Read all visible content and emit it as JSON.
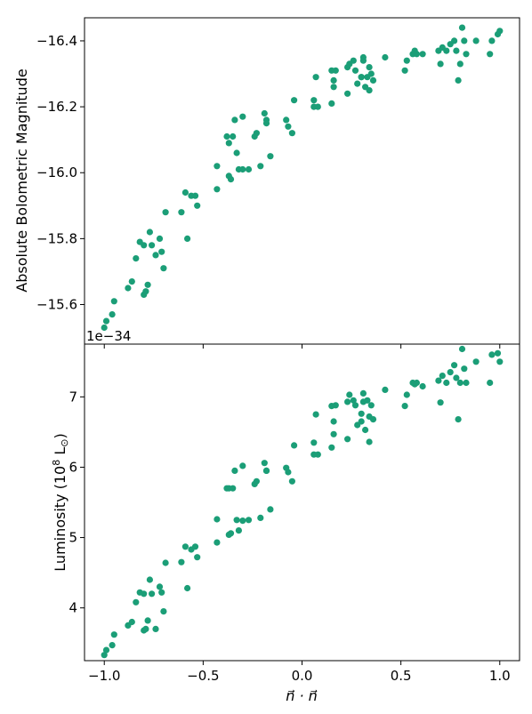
{
  "chart_data": [
    {
      "type": "scatter",
      "panel": "top",
      "ylabel": "Absolute Bolometric Magnitude",
      "y_inverted": true,
      "xlim": [
        -1.1,
        1.1
      ],
      "ylim": [
        -15.48,
        -16.47
      ],
      "yticks": [
        -15.6,
        -15.8,
        -16.0,
        -16.2,
        -16.4
      ],
      "ytick_labels": [
        "−15.6",
        "−15.8",
        "−16.0",
        "−16.2",
        "−16.4"
      ],
      "color": "#1b9e77",
      "x": [
        -1.0,
        -0.99,
        -0.96,
        -0.95,
        -0.88,
        -0.86,
        -0.84,
        -0.82,
        -0.8,
        -0.8,
        -0.79,
        -0.78,
        -0.77,
        -0.76,
        -0.74,
        -0.72,
        -0.71,
        -0.7,
        -0.69,
        -0.61,
        -0.59,
        -0.58,
        -0.56,
        -0.54,
        -0.53,
        -0.43,
        -0.43,
        -0.38,
        -0.37,
        -0.37,
        -0.36,
        -0.35,
        -0.34,
        -0.33,
        -0.32,
        -0.3,
        -0.3,
        -0.27,
        -0.24,
        -0.23,
        -0.21,
        -0.19,
        -0.18,
        -0.18,
        -0.16,
        -0.08,
        -0.07,
        -0.05,
        -0.04,
        0.06,
        0.06,
        0.07,
        0.08,
        0.15,
        0.15,
        0.16,
        0.16,
        0.17,
        0.23,
        0.23,
        0.24,
        0.26,
        0.27,
        0.28,
        0.3,
        0.3,
        0.31,
        0.31,
        0.32,
        0.33,
        0.34,
        0.34,
        0.35,
        0.36,
        0.42,
        0.52,
        0.53,
        0.56,
        0.57,
        0.58,
        0.61,
        0.69,
        0.7,
        0.71,
        0.73,
        0.75,
        0.77,
        0.78,
        0.79,
        0.8,
        0.81,
        0.82,
        0.83,
        0.88,
        0.95,
        0.96,
        0.99,
        1.0
      ],
      "y": [
        -15.53,
        -15.55,
        -15.57,
        -15.61,
        -15.65,
        -15.67,
        -15.74,
        -15.79,
        -15.63,
        -15.78,
        -15.64,
        -15.66,
        -15.82,
        -15.78,
        -15.75,
        -15.8,
        -15.76,
        -15.71,
        -15.88,
        -15.88,
        -15.94,
        -15.8,
        -15.93,
        -15.93,
        -15.9,
        -15.95,
        -16.02,
        -16.11,
        -16.09,
        -15.99,
        -15.98,
        -16.11,
        -16.16,
        -16.06,
        -16.01,
        -16.17,
        -16.01,
        -16.01,
        -16.11,
        -16.12,
        -16.02,
        -16.18,
        -16.16,
        -16.15,
        -16.05,
        -16.16,
        -16.14,
        -16.12,
        -16.22,
        -16.22,
        -16.2,
        -16.29,
        -16.2,
        -16.31,
        -16.21,
        -16.28,
        -16.26,
        -16.31,
        -16.32,
        -16.24,
        -16.33,
        -16.34,
        -16.31,
        -16.27,
        -16.29,
        -16.29,
        -16.35,
        -16.34,
        -16.26,
        -16.29,
        -16.25,
        -16.32,
        -16.3,
        -16.28,
        -16.35,
        -16.31,
        -16.34,
        -16.36,
        -16.37,
        -16.36,
        -16.36,
        -16.37,
        -16.33,
        -16.38,
        -16.37,
        -16.39,
        -16.4,
        -16.37,
        -16.28,
        -16.33,
        -16.44,
        -16.4,
        -16.36,
        -16.4,
        -16.36,
        -16.4,
        -16.42,
        -16.43
      ]
    },
    {
      "type": "scatter",
      "panel": "bottom",
      "offset_text": "1e−34",
      "ylabel": "Luminosity (10",
      "ylabel_sup": "8",
      "ylabel_unit": " L",
      "ylabel_sub": "⊙",
      "ylabel_close": ")",
      "xlabel": "n⃗ · n⃗",
      "xlim": [
        -1.1,
        1.1
      ],
      "ylim": [
        3.25,
        7.75
      ],
      "xticks": [
        -1.0,
        -0.5,
        0.0,
        0.5,
        1.0
      ],
      "xtick_labels": [
        "−1.0",
        "−0.5",
        "0.0",
        "0.5",
        "1.0"
      ],
      "yticks": [
        4,
        5,
        6,
        7
      ],
      "ytick_labels": [
        "4",
        "5",
        "6",
        "7"
      ],
      "color": "#1b9e77",
      "x": [
        -1.0,
        -0.99,
        -0.96,
        -0.95,
        -0.88,
        -0.86,
        -0.84,
        -0.82,
        -0.8,
        -0.8,
        -0.79,
        -0.78,
        -0.77,
        -0.76,
        -0.74,
        -0.72,
        -0.71,
        -0.7,
        -0.69,
        -0.61,
        -0.59,
        -0.58,
        -0.56,
        -0.54,
        -0.53,
        -0.43,
        -0.43,
        -0.38,
        -0.37,
        -0.37,
        -0.36,
        -0.35,
        -0.34,
        -0.33,
        -0.32,
        -0.3,
        -0.3,
        -0.27,
        -0.24,
        -0.23,
        -0.21,
        -0.19,
        -0.18,
        -0.18,
        -0.16,
        -0.08,
        -0.07,
        -0.05,
        -0.04,
        0.06,
        0.06,
        0.07,
        0.08,
        0.15,
        0.15,
        0.16,
        0.16,
        0.17,
        0.23,
        0.23,
        0.24,
        0.26,
        0.27,
        0.28,
        0.3,
        0.3,
        0.31,
        0.31,
        0.32,
        0.33,
        0.34,
        0.34,
        0.35,
        0.36,
        0.42,
        0.52,
        0.53,
        0.56,
        0.57,
        0.58,
        0.61,
        0.69,
        0.7,
        0.71,
        0.73,
        0.75,
        0.77,
        0.78,
        0.79,
        0.8,
        0.81,
        0.82,
        0.83,
        0.88,
        0.95,
        0.96,
        0.99,
        1.0
      ],
      "y": [
        3.33,
        3.4,
        3.47,
        3.62,
        3.75,
        3.8,
        4.08,
        4.22,
        3.68,
        4.2,
        3.7,
        3.82,
        4.4,
        4.2,
        3.7,
        4.3,
        4.22,
        3.95,
        4.64,
        4.65,
        4.87,
        4.28,
        4.83,
        4.87,
        4.72,
        4.93,
        5.26,
        5.7,
        5.7,
        5.04,
        5.06,
        5.7,
        5.95,
        5.25,
        5.1,
        6.02,
        5.24,
        5.25,
        5.76,
        5.8,
        5.28,
        6.06,
        5.95,
        5.95,
        5.4,
        5.99,
        5.93,
        5.8,
        6.31,
        6.35,
        6.18,
        6.75,
        6.18,
        6.87,
        6.28,
        6.65,
        6.47,
        6.88,
        6.93,
        6.4,
        7.03,
        6.95,
        6.88,
        6.6,
        6.76,
        6.65,
        7.05,
        6.93,
        6.53,
        6.95,
        6.36,
        6.72,
        6.88,
        6.68,
        7.1,
        6.87,
        7.03,
        7.2,
        7.18,
        7.2,
        7.15,
        7.23,
        6.92,
        7.3,
        7.2,
        7.35,
        7.45,
        7.27,
        6.68,
        7.2,
        7.68,
        7.4,
        7.2,
        7.5,
        7.2,
        7.6,
        7.62,
        7.5
      ]
    }
  ]
}
